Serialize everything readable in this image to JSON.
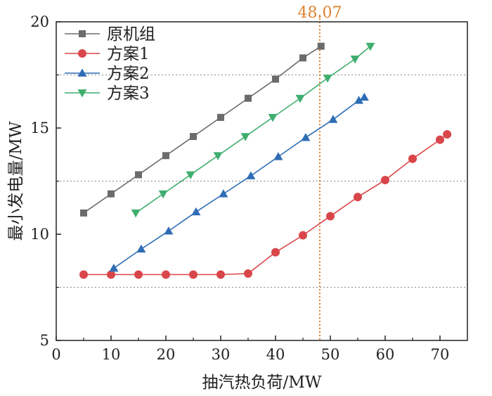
{
  "chart_data": {
    "type": "line",
    "xlabel": "抽汽热负荷/MW",
    "ylabel": "最小发电量/MW",
    "xlim": [
      0,
      75
    ],
    "ylim": [
      5,
      20
    ],
    "xticks": [
      "0",
      "10",
      "20",
      "30",
      "40",
      "50",
      "60",
      "70"
    ],
    "yticks": [
      "5",
      "10",
      "15",
      "20"
    ],
    "grid": "dotted horizontal lines at 7.5, 12.5, 17.5",
    "hgrid_values": [
      7.5,
      12.5,
      17.5
    ],
    "legend_position": "top-left",
    "annotation": {
      "text": "48.07",
      "x": 48.07,
      "color": "#e0822c"
    },
    "series": [
      {
        "name": "原机组",
        "color": "#6b6b6b",
        "marker": "square",
        "x": [
          5,
          10,
          15,
          20,
          25,
          30,
          35,
          40,
          45,
          48.3
        ],
        "y": [
          11.0,
          11.9,
          12.8,
          13.7,
          14.6,
          15.5,
          16.4,
          17.3,
          18.3,
          18.85
        ]
      },
      {
        "name": "方案1",
        "color": "#d9464a",
        "marker": "circle",
        "x": [
          5,
          10,
          15,
          20,
          25,
          30,
          35,
          40,
          45,
          50,
          55,
          60,
          65,
          70,
          71.3
        ],
        "y": [
          8.1,
          8.1,
          8.1,
          8.1,
          8.1,
          8.1,
          8.15,
          9.15,
          9.95,
          10.85,
          11.75,
          12.55,
          13.55,
          14.45,
          14.7
        ]
      },
      {
        "name": "方案2",
        "color": "#2f6db5",
        "marker": "triangle-up",
        "x": [
          10.5,
          15.5,
          20.5,
          25.5,
          30.5,
          35.5,
          40.5,
          45.5,
          50.5,
          55.2,
          56.2
        ],
        "y": [
          8.4,
          9.3,
          10.15,
          11.05,
          11.9,
          12.75,
          13.65,
          14.55,
          15.4,
          16.3,
          16.45
        ]
      },
      {
        "name": "方案3",
        "color": "#3fae6f",
        "marker": "triangle-down",
        "x": [
          14.5,
          19.5,
          24.5,
          29.5,
          34.5,
          39.5,
          44.5,
          49.5,
          54.5,
          57.3
        ],
        "y": [
          11.0,
          11.9,
          12.8,
          13.7,
          14.6,
          15.5,
          16.4,
          17.35,
          18.25,
          18.85
        ]
      }
    ]
  }
}
